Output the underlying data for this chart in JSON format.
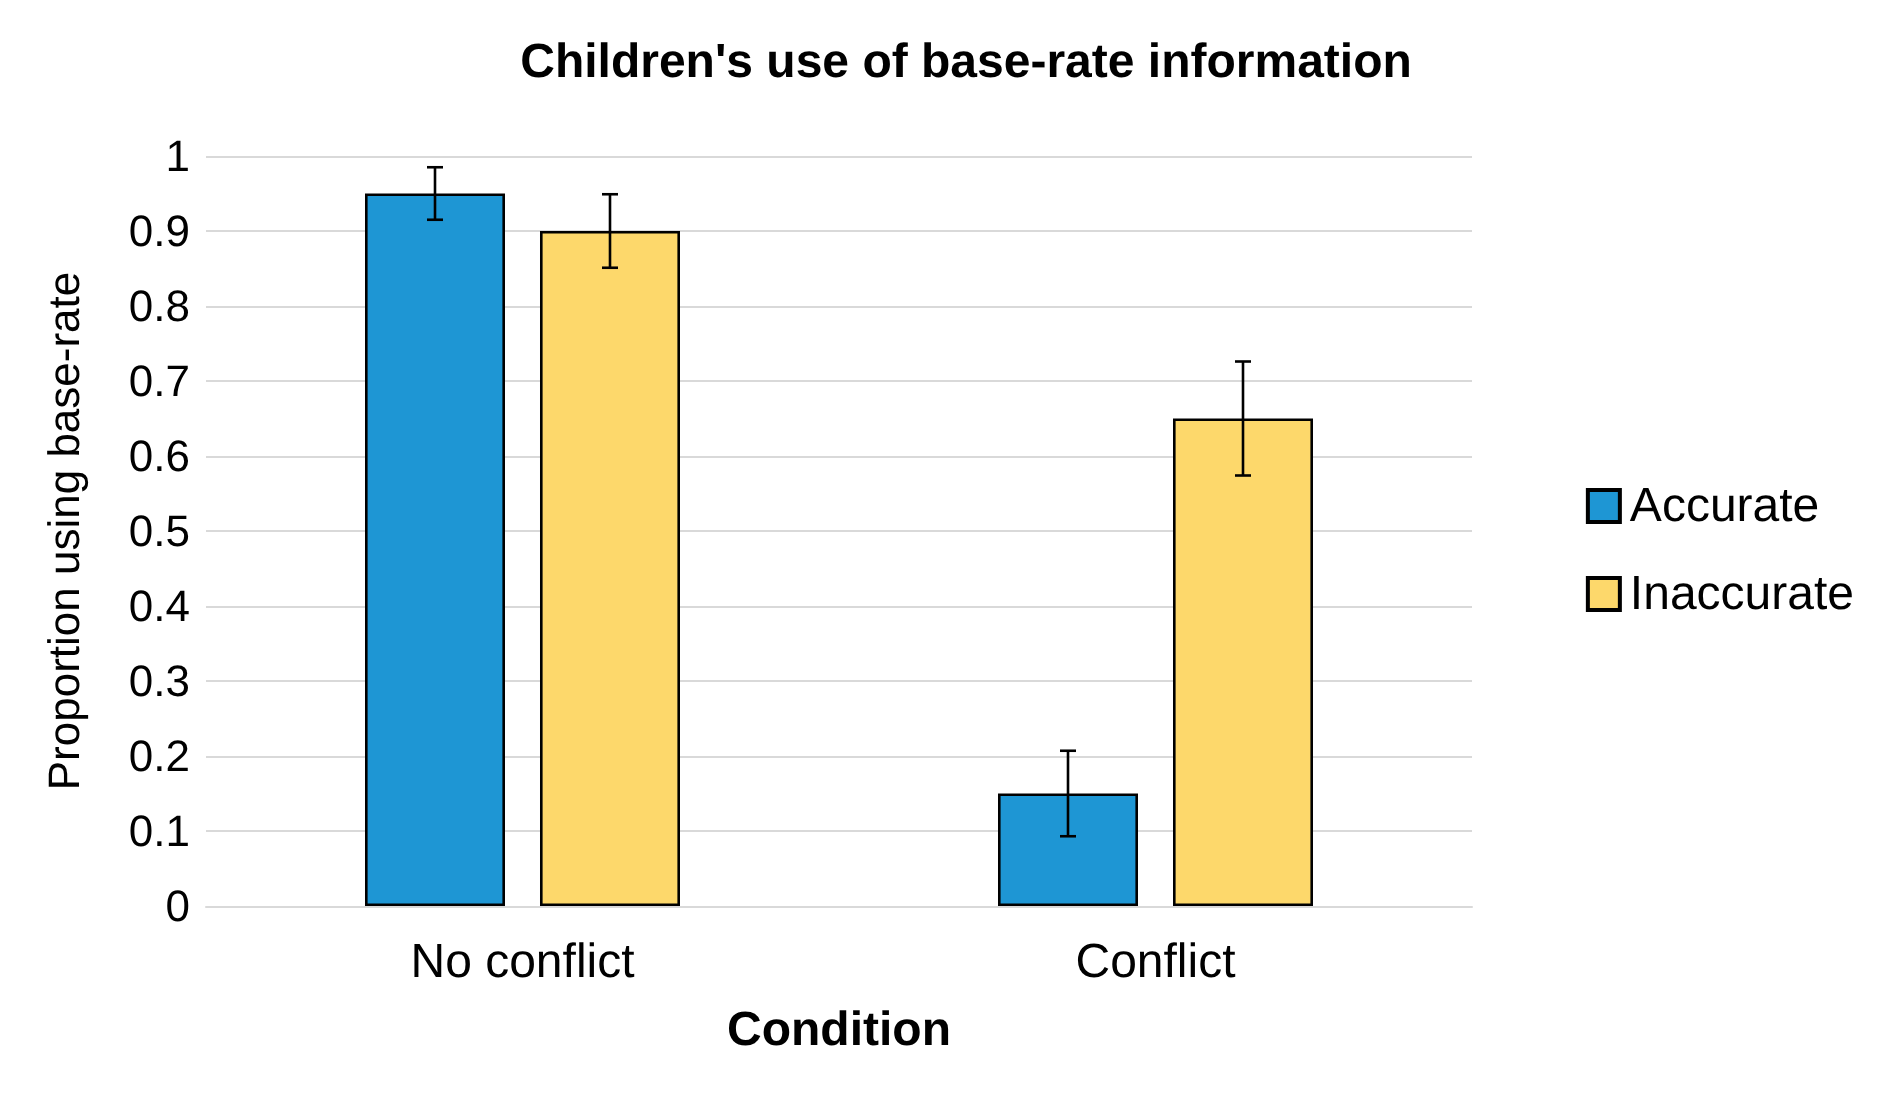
{
  "chart_data": {
    "type": "bar",
    "title": "Children's use of base-rate information",
    "xlabel": "Condition",
    "ylabel": "Proportion using base-rate",
    "categories": [
      "No conflict",
      "Conflict"
    ],
    "series": [
      {
        "name": "Accurate",
        "color": "#1e96d4",
        "values": [
          0.95,
          0.15
        ],
        "errors": [
          0.035,
          0.057
        ]
      },
      {
        "name": "Inaccurate",
        "color": "#fdd86b",
        "values": [
          0.9,
          0.65
        ],
        "errors": [
          0.049,
          0.076
        ]
      }
    ],
    "ylim": [
      0,
      1
    ],
    "yticks": [
      0,
      0.1,
      0.2,
      0.3,
      0.4,
      0.5,
      0.6,
      0.7,
      0.8,
      0.9,
      1
    ],
    "grid": "y",
    "legend": "right"
  }
}
